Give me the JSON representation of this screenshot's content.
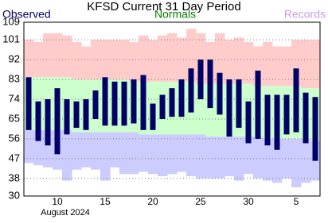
{
  "chart_data": {
    "type": "range",
    "title": "KFSD Current 31 Day Period",
    "xlabel": "August 2024",
    "categories": [
      null,
      null,
      null,
      "10",
      null,
      null,
      null,
      null,
      "15",
      null,
      null,
      null,
      null,
      "20",
      null,
      null,
      null,
      null,
      "25",
      null,
      null,
      null,
      null,
      "30",
      null,
      null,
      null,
      null,
      "5",
      null,
      null
    ],
    "ylim": [
      30,
      109
    ],
    "yticks": [
      30,
      38,
      47,
      56,
      65,
      74,
      83,
      92,
      101,
      109
    ],
    "grid": true,
    "series": [
      {
        "name": "Observed",
        "color": "#000066",
        "high": [
          84,
          73,
          74,
          79,
          74,
          73,
          74,
          78,
          84,
          82,
          82,
          83,
          85,
          72,
          76,
          79,
          83,
          88,
          92,
          92,
          86,
          83,
          83,
          73,
          87,
          76,
          76,
          76,
          88,
          77,
          75
        ],
        "low": [
          60,
          55,
          53,
          49,
          58,
          61,
          60,
          65,
          62,
          62,
          62,
          63,
          60,
          60,
          65,
          66,
          66,
          68,
          74,
          70,
          67,
          57,
          61,
          54,
          56,
          53,
          51,
          58,
          59,
          54,
          46
        ]
      },
      {
        "name": "Normals",
        "color": "#008000",
        "fill": "#ccffcc",
        "high": [
          84,
          84,
          84,
          84,
          84,
          83,
          83,
          83,
          83,
          83,
          83,
          82,
          82,
          82,
          82,
          82,
          82,
          82,
          81,
          81,
          81,
          81,
          81,
          81,
          80,
          80,
          80,
          80,
          80,
          79,
          79
        ],
        "low": [
          60,
          60,
          60,
          60,
          60,
          59,
          59,
          59,
          59,
          59,
          59,
          59,
          58,
          58,
          58,
          58,
          58,
          58,
          58,
          57,
          57,
          57,
          57,
          57,
          57,
          56,
          56,
          56,
          56,
          56,
          55
        ]
      },
      {
        "name": "Records",
        "color": "#cc99ee",
        "fill_high": "#ffcccc",
        "fill_low": "#ccccff",
        "high": [
          101,
          100,
          104,
          104,
          103,
          100,
          98,
          101,
          101,
          101,
          101,
          100,
          103,
          101,
          103,
          104,
          102,
          106,
          104,
          100,
          104,
          101,
          102,
          100,
          98,
          100,
          98,
          98,
          101,
          101,
          101
        ],
        "low": [
          45,
          44,
          43,
          42,
          37,
          42,
          43,
          42,
          37,
          43,
          40,
          40,
          41,
          40,
          39,
          40,
          41,
          39,
          38,
          38,
          38,
          39,
          37,
          40,
          38,
          37,
          36,
          38,
          34,
          36,
          37
        ]
      }
    ]
  }
}
